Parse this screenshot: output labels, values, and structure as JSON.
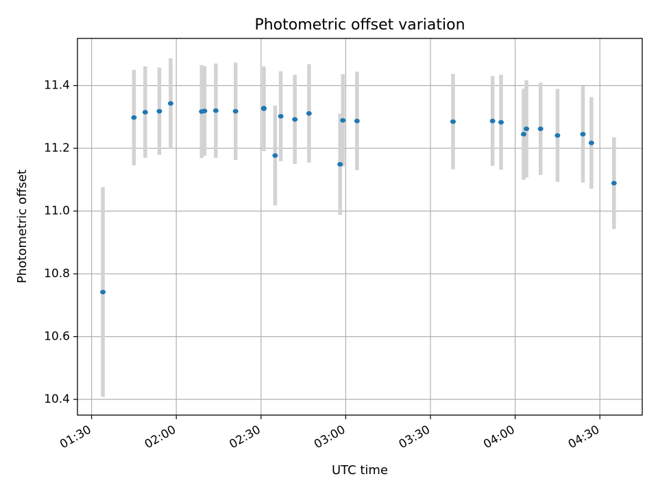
{
  "chart_data": {
    "type": "scatter",
    "title": "Photometric offset variation",
    "xlabel": "UTC time",
    "ylabel": "Photometric offset",
    "xlim": [
      "01:25",
      "04:45"
    ],
    "ylim": [
      10.35,
      11.55
    ],
    "x_ticks": [
      "01:30",
      "02:00",
      "02:30",
      "03:00",
      "03:30",
      "04:00",
      "04:30"
    ],
    "y_ticks": [
      10.4,
      10.6,
      10.8,
      11.0,
      11.2,
      11.4
    ],
    "y_tick_labels": [
      "10.4",
      "10.6",
      "10.8",
      "11.0",
      "11.2",
      "11.4"
    ],
    "grid": true,
    "colors": {
      "point": "#1f77b4",
      "errorbar": "#d3d3d3",
      "grid": "#b0b0b0"
    },
    "points": [
      {
        "x": "01:34",
        "y": 10.742,
        "yerr": 0.334
      },
      {
        "x": "01:45",
        "y": 11.298,
        "yerr": 0.152
      },
      {
        "x": "01:49",
        "y": 11.315,
        "yerr": 0.146
      },
      {
        "x": "01:54",
        "y": 11.318,
        "yerr": 0.139
      },
      {
        "x": "01:58",
        "y": 11.343,
        "yerr": 0.144
      },
      {
        "x": "02:09",
        "y": 11.317,
        "yerr": 0.148
      },
      {
        "x": "02:10",
        "y": 11.319,
        "yerr": 0.143
      },
      {
        "x": "02:14",
        "y": 11.32,
        "yerr": 0.15
      },
      {
        "x": "02:21",
        "y": 11.318,
        "yerr": 0.155
      },
      {
        "x": "02:31",
        "y": 11.326,
        "yerr": 0.135
      },
      {
        "x": "02:31",
        "y": 11.328,
        "yerr": 0.131
      },
      {
        "x": "02:35",
        "y": 11.177,
        "yerr": 0.159
      },
      {
        "x": "02:37",
        "y": 11.302,
        "yerr": 0.143
      },
      {
        "x": "02:42",
        "y": 11.292,
        "yerr": 0.142
      },
      {
        "x": "02:47",
        "y": 11.311,
        "yerr": 0.157
      },
      {
        "x": "02:58",
        "y": 11.149,
        "yerr": 0.161
      },
      {
        "x": "02:59",
        "y": 11.289,
        "yerr": 0.147
      },
      {
        "x": "03:04",
        "y": 11.287,
        "yerr": 0.157
      },
      {
        "x": "03:38",
        "y": 11.285,
        "yerr": 0.152
      },
      {
        "x": "03:52",
        "y": 11.287,
        "yerr": 0.143
      },
      {
        "x": "03:55",
        "y": 11.283,
        "yerr": 0.151
      },
      {
        "x": "04:03",
        "y": 11.245,
        "yerr": 0.145
      },
      {
        "x": "04:04",
        "y": 11.262,
        "yerr": 0.155
      },
      {
        "x": "04:09",
        "y": 11.262,
        "yerr": 0.147
      },
      {
        "x": "04:15",
        "y": 11.241,
        "yerr": 0.148
      },
      {
        "x": "04:24",
        "y": 11.245,
        "yerr": 0.154
      },
      {
        "x": "04:27",
        "y": 11.217,
        "yerr": 0.146
      },
      {
        "x": "04:35",
        "y": 11.089,
        "yerr": 0.146
      }
    ]
  }
}
